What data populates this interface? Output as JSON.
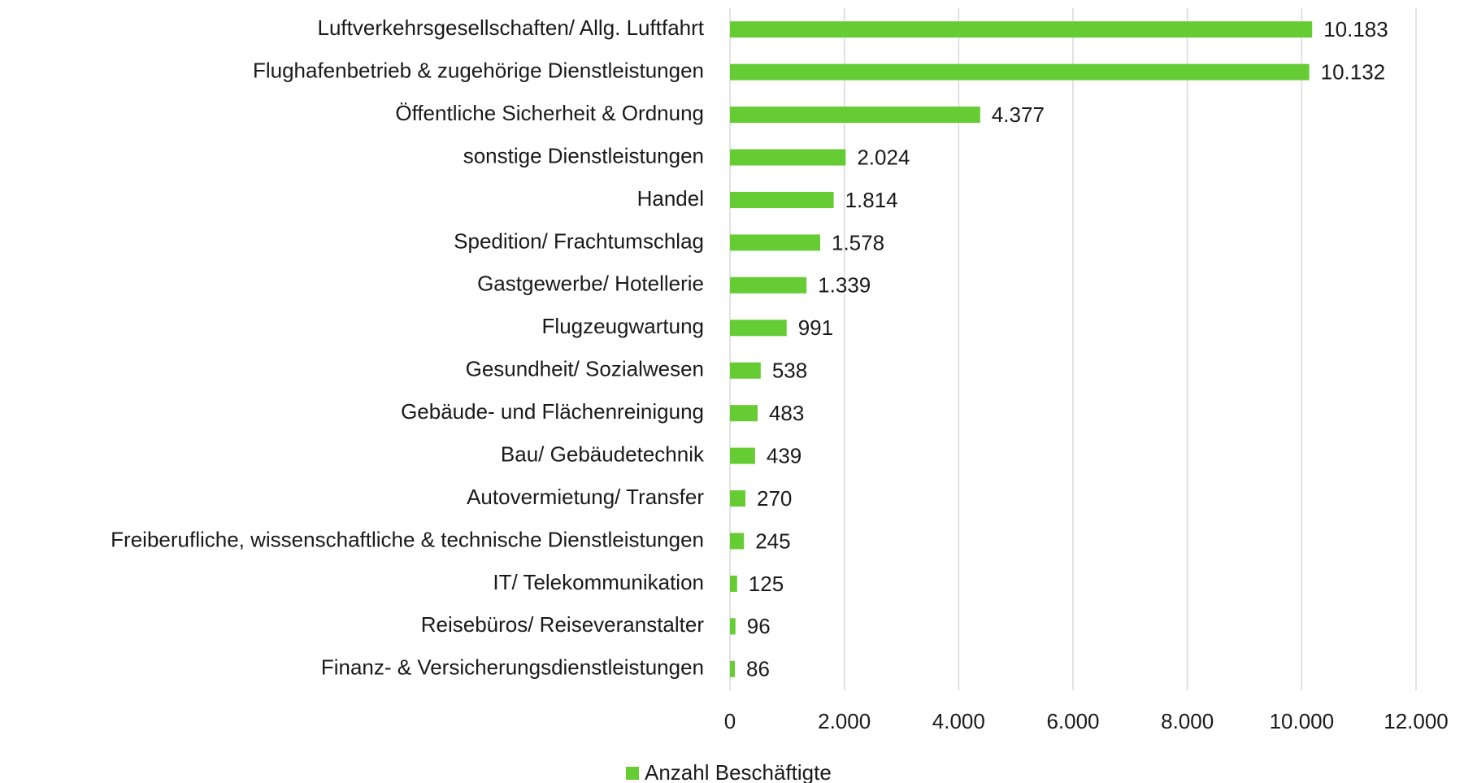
{
  "chart_data": {
    "type": "bar",
    "orientation": "horizontal",
    "categories": [
      "Luftverkehrsgesellschaften/ Allg. Luftfahrt",
      "Flughafenbetrieb & zugehörige Dienstleistungen",
      "Öffentliche Sicherheit & Ordnung",
      "sonstige Dienstleistungen",
      "Handel",
      "Spedition/ Frachtumschlag",
      "Gastgewerbe/ Hotellerie",
      "Flugzeugwartung",
      "Gesundheit/ Sozialwesen",
      "Gebäude- und Flächenreinigung",
      "Bau/ Gebäudetechnik",
      "Autovermietung/ Transfer",
      "Freiberufliche, wissenschaftliche & technische Dienstleistungen",
      "IT/ Telekommunikation",
      "Reisebüros/ Reiseveranstalter",
      "Finanz- & Versicherungsdienstleistungen"
    ],
    "series": [
      {
        "name": "Anzahl Beschäftigte",
        "color": "#66cc33",
        "values": [
          10183,
          10132,
          4377,
          2024,
          1814,
          1578,
          1339,
          991,
          538,
          483,
          439,
          270,
          245,
          125,
          96,
          86
        ],
        "value_labels": [
          "10.183",
          "10.132",
          "4.377",
          "2.024",
          "1.814",
          "1.578",
          "1.339",
          "991",
          "538",
          "483",
          "439",
          "270",
          "245",
          "125",
          "96",
          "86"
        ]
      }
    ],
    "xlim": [
      0,
      12000
    ],
    "xticks": [
      0,
      {
        "value": 2000,
        "label": "2.000"
      },
      {
        "value": 4000,
        "label": "4.000"
      },
      {
        "value": 6000,
        "label": "6.000"
      },
      {
        "value": 8000,
        "label": "8.000"
      },
      {
        "value": 10000,
        "label": "10.000"
      },
      {
        "value": 12000,
        "label": "12.000"
      }
    ],
    "grid": true,
    "legend": "bottom"
  }
}
